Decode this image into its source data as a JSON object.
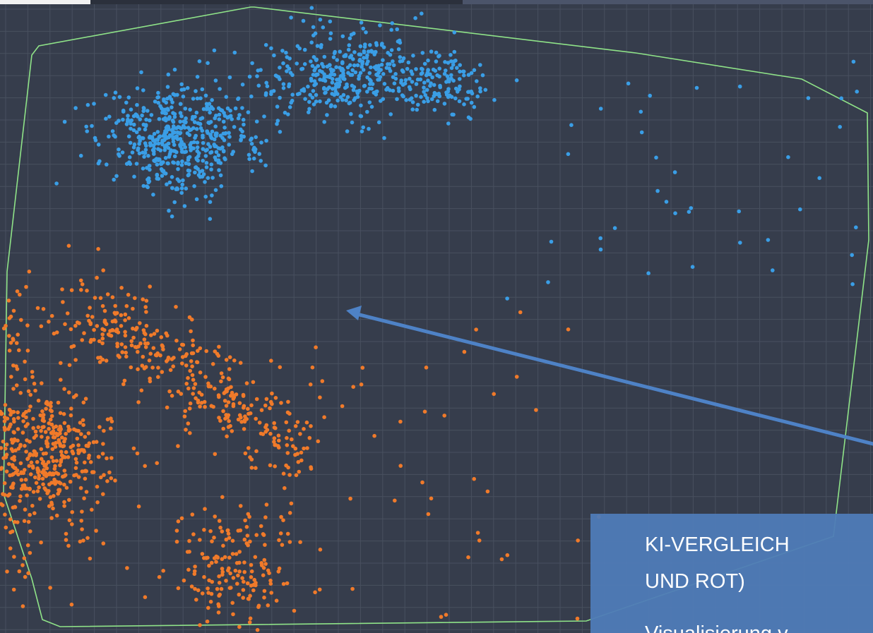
{
  "panel": {
    "heading_lines": [
      "KI-VERGLEICH",
      "UND ROT)"
    ],
    "caption": "Visualisierung v"
  }
}
